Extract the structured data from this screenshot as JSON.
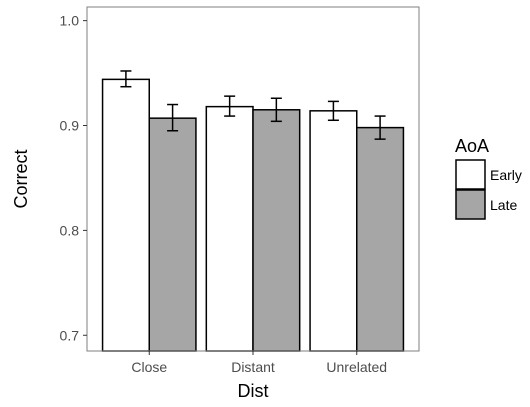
{
  "chart_data": {
    "type": "bar",
    "categories": [
      "Close",
      "Distant",
      "Unrelated"
    ],
    "series": [
      {
        "name": "Early",
        "values": [
          0.944,
          0.918,
          0.914
        ],
        "error_low": [
          0.937,
          0.909,
          0.905
        ],
        "error_high": [
          0.952,
          0.928,
          0.923
        ]
      },
      {
        "name": "Late",
        "values": [
          0.907,
          0.915,
          0.898
        ],
        "error_low": [
          0.895,
          0.904,
          0.887
        ],
        "error_high": [
          0.92,
          0.926,
          0.909
        ]
      }
    ],
    "xlabel": "Dist",
    "ylabel": "Correct",
    "ylim": [
      0.685,
      1.013
    ],
    "yticks": [
      0.7,
      0.8,
      0.9,
      1.0
    ],
    "ytick_labels": [
      "0.7",
      "0.8",
      "0.9",
      "1.0"
    ],
    "legend": {
      "title": "AoA",
      "entries": [
        "Early",
        "Late"
      ],
      "placement": "right"
    },
    "colors": {
      "Early": "#ffffff",
      "Late": "#a6a6a6",
      "bar_outline": "#000000",
      "panel_border": "#7f7f7f",
      "tick_text": "#4d4d4d",
      "error_bar": "#000000"
    },
    "grid": false
  }
}
